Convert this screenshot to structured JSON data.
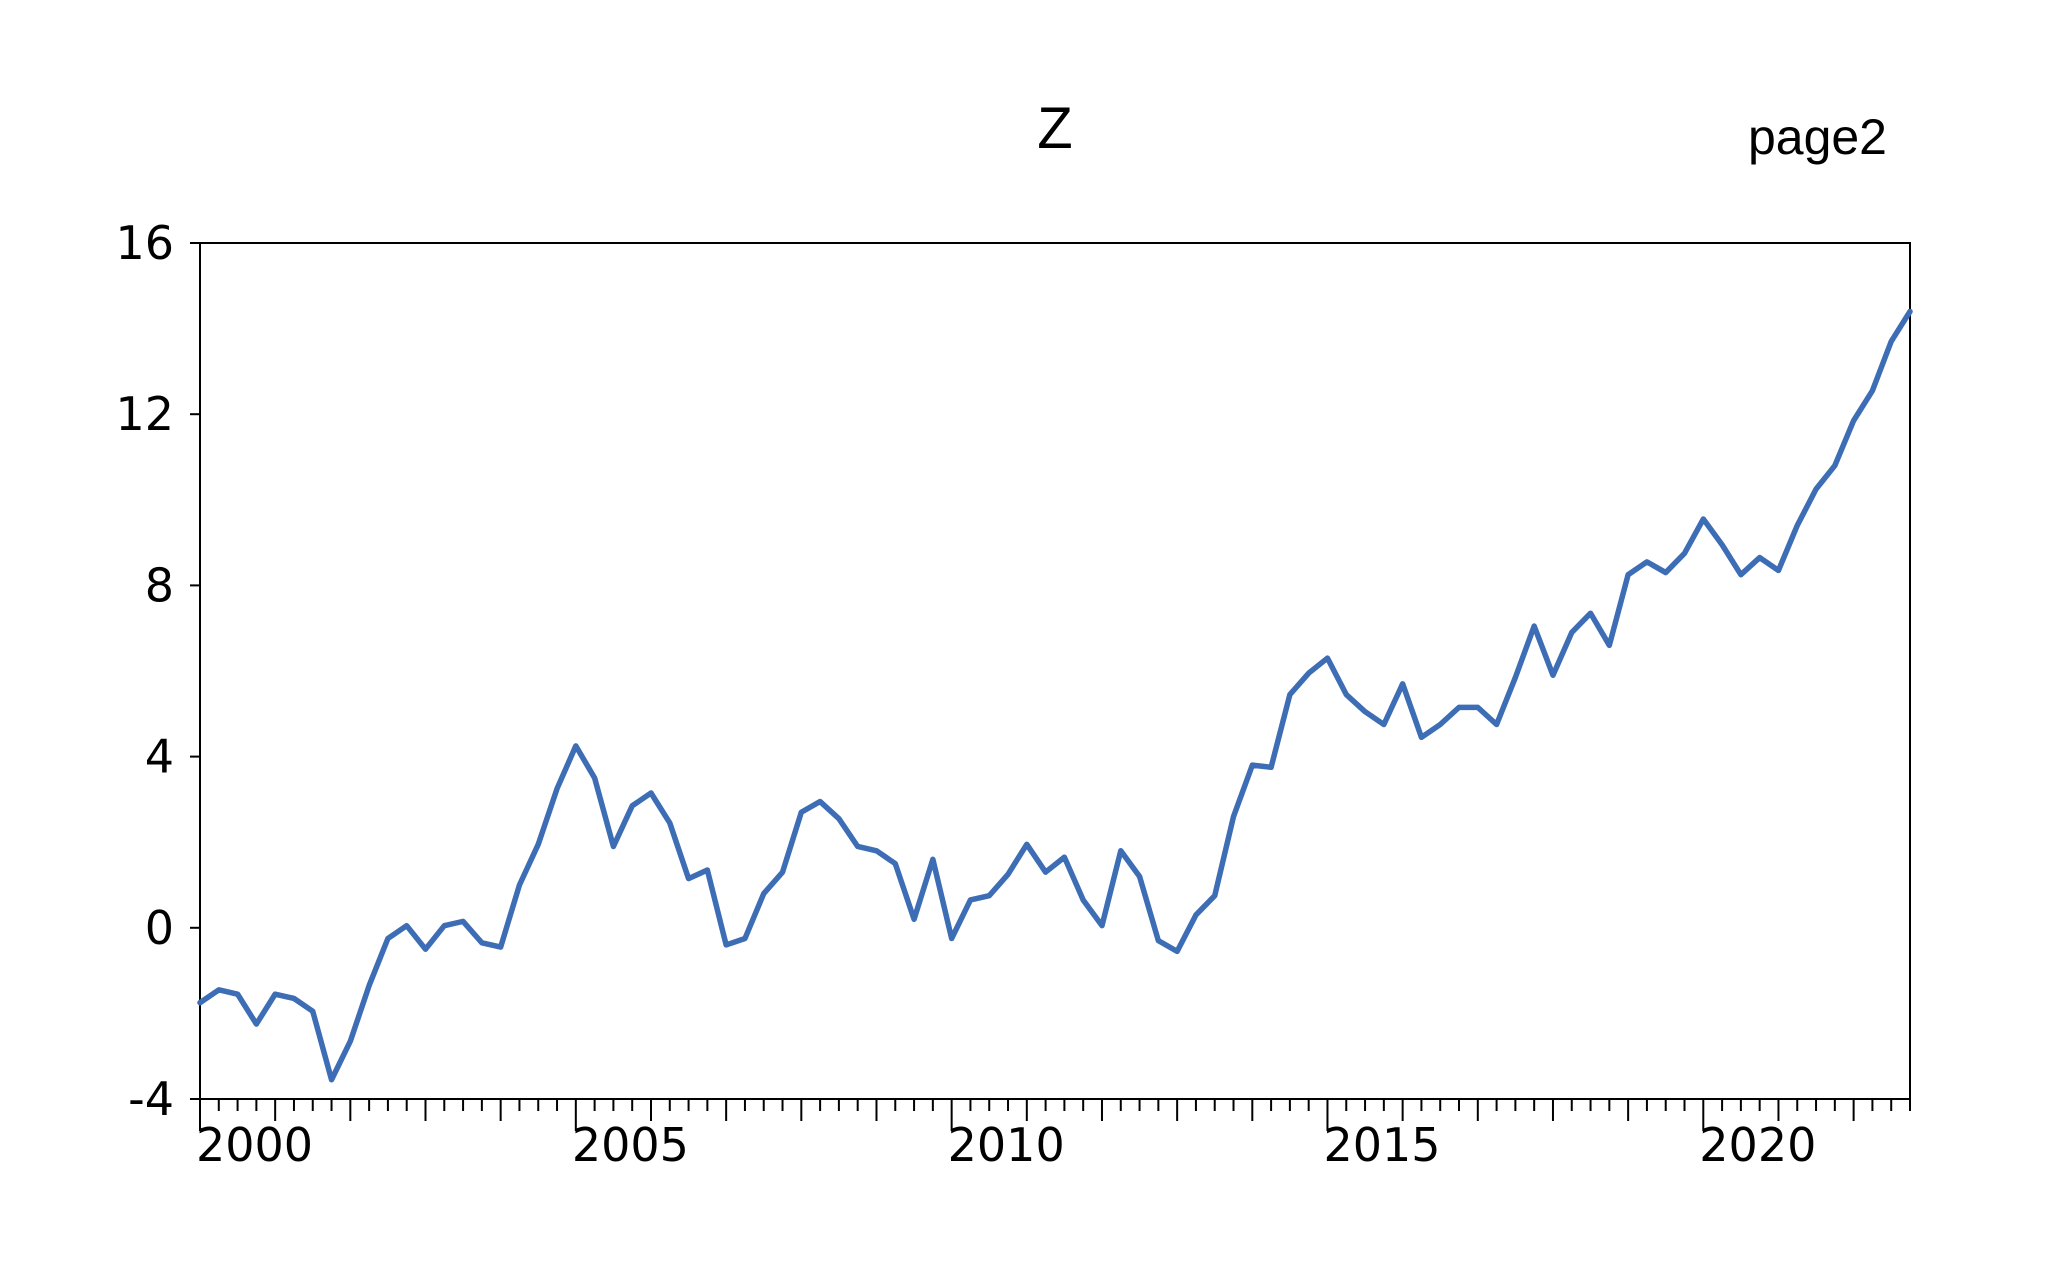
{
  "chart_data": {
    "type": "line",
    "title": "Z",
    "page_label": "page2",
    "xlabel": "",
    "ylabel": "",
    "frequency": "quarterly",
    "x_start": 2000,
    "x_end": 2022.75,
    "xlim": [
      2000,
      2022.75
    ],
    "ylim": [
      -4,
      16
    ],
    "y_ticks": [
      -4,
      0,
      4,
      8,
      12,
      16
    ],
    "y_tick_labels": [
      "-4",
      "0",
      "4",
      "8",
      "12",
      "16"
    ],
    "x_ticks": [
      2000,
      2005,
      2010,
      2015,
      2020
    ],
    "x_tick_labels": [
      "2000",
      "2005",
      "2010",
      "2015",
      "2020"
    ],
    "grid": false,
    "line_color": "#3d6db5",
    "series": [
      {
        "values": [
          -1.75,
          -1.45,
          -1.55,
          -2.25,
          -1.55,
          -1.65,
          -1.95,
          -3.55,
          -2.65,
          -1.35,
          -0.25,
          0.05,
          -0.5,
          0.05,
          0.15,
          -0.35,
          -0.45,
          1.0,
          1.95,
          3.25,
          4.25,
          3.5,
          1.9,
          2.85,
          3.15,
          2.45,
          1.15,
          1.35,
          -0.4,
          -0.25,
          0.8,
          1.3,
          2.7,
          2.95,
          2.55,
          1.9,
          1.8,
          1.5,
          0.2,
          1.6,
          -0.25,
          0.65,
          0.75,
          1.25,
          1.95,
          1.3,
          1.65,
          0.65,
          0.05,
          1.8,
          1.2,
          -0.3,
          -0.55,
          0.3,
          0.75,
          2.6,
          3.8,
          3.75,
          5.45,
          5.95,
          6.3,
          5.45,
          5.05,
          4.75,
          5.7,
          4.45,
          4.75,
          5.15,
          5.15,
          4.75,
          5.85,
          7.05,
          5.9,
          6.9,
          7.35,
          6.6,
          8.25,
          8.55,
          8.3,
          8.75,
          9.55,
          8.95,
          8.25,
          8.65,
          8.35,
          9.4,
          10.25,
          10.8,
          11.85,
          12.55,
          13.7,
          14.4
        ]
      }
    ]
  }
}
